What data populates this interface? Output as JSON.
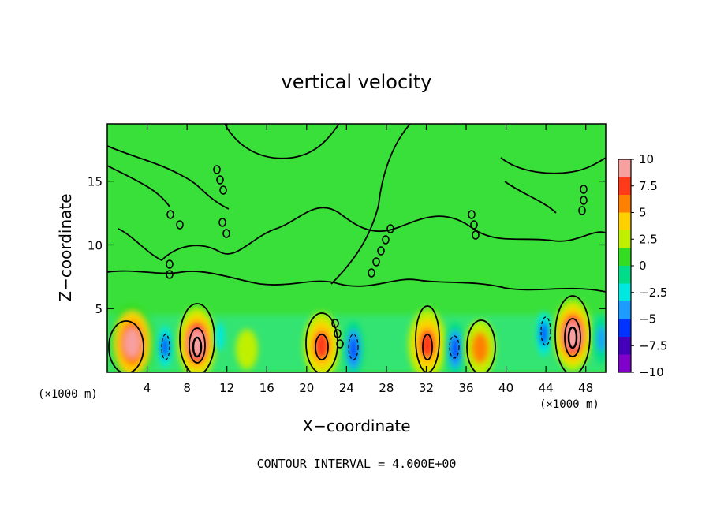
{
  "chart_data": {
    "type": "heatmap",
    "title": "vertical velocity",
    "xlabel": "X−coordinate",
    "ylabel": "Z−coordinate",
    "x_unit_left": "(×1000 m)",
    "x_unit_right": "(×1000 m)",
    "xlim": [
      0,
      50
    ],
    "ylim": [
      0,
      19.5
    ],
    "x_ticks": [
      "4",
      "8",
      "12",
      "16",
      "20",
      "24",
      "28",
      "32",
      "36",
      "40",
      "44",
      "48"
    ],
    "x_tick_values": [
      4,
      8,
      12,
      16,
      20,
      24,
      28,
      32,
      36,
      40,
      44,
      48
    ],
    "y_ticks": [
      "5",
      "10",
      "15"
    ],
    "y_tick_values": [
      5,
      10,
      15
    ],
    "colorbar_ticks": [
      "10",
      "7.5",
      "5",
      "2.5",
      "0",
      "−2.5",
      "−5",
      "−7.5",
      "−10"
    ],
    "colorbar_values": [
      10,
      7.5,
      5,
      2.5,
      0,
      -2.5,
      -5,
      -7.5,
      -10
    ],
    "colorbar_colors": [
      "#f7a0a0",
      "#ff3a1a",
      "#ff8000",
      "#ffd000",
      "#c0f000",
      "#33dd22",
      "#00dd88",
      "#00e8e0",
      "#1e9bff",
      "#0033ff",
      "#4400bb",
      "#8000cc"
    ],
    "footer": "CONTOUR INTERVAL = 4.000E+00",
    "contour_interval": 4.0,
    "cells": [
      {
        "x": 2.5,
        "z": 2.3,
        "w": 8.5,
        "label": "updraft"
      },
      {
        "x": 5.8,
        "z": 2.0,
        "w": -5.5,
        "label": "downdraft"
      },
      {
        "x": 9.0,
        "z": 2.3,
        "w": 10.0,
        "label": "updraft"
      },
      {
        "x": 11.3,
        "z": 2.8,
        "w": -3.0,
        "label": "downdraft"
      },
      {
        "x": 14.0,
        "z": 1.8,
        "w": 2.5,
        "label": "updraft"
      },
      {
        "x": 21.5,
        "z": 2.1,
        "w": 7.5,
        "label": "updraft"
      },
      {
        "x": 24.7,
        "z": 1.8,
        "w": -6.0,
        "label": "downdraft"
      },
      {
        "x": 32.1,
        "z": 2.2,
        "w": 7.0,
        "label": "updraft"
      },
      {
        "x": 34.9,
        "z": 1.8,
        "w": -6.5,
        "label": "downdraft"
      },
      {
        "x": 37.4,
        "z": 1.9,
        "w": 5.5,
        "label": "updraft"
      },
      {
        "x": 43.8,
        "z": 3.0,
        "w": -5.0,
        "label": "downdraft"
      },
      {
        "x": 46.7,
        "z": 2.9,
        "w": 10.0,
        "label": "updraft"
      },
      {
        "x": 49.6,
        "z": 2.6,
        "w": -4.0,
        "label": "downdraft"
      }
    ]
  }
}
